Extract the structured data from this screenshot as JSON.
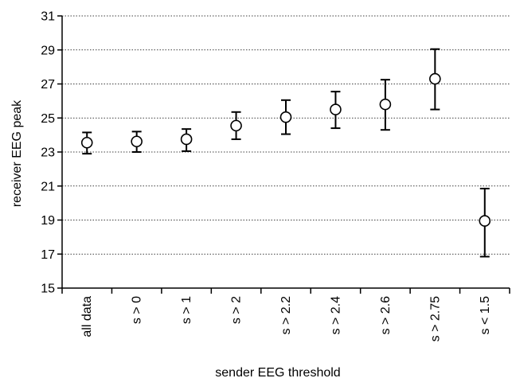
{
  "chart_data": {
    "type": "scatter",
    "title": "",
    "xlabel": "sender EEG threshold",
    "ylabel": "receiver EEG peak",
    "ylim": [
      15,
      31
    ],
    "yticks": [
      15,
      17,
      19,
      21,
      23,
      25,
      27,
      29,
      31
    ],
    "grid": "horizontal-dotted",
    "categories": [
      "all data",
      "s > 0",
      "s > 1",
      "s > 2",
      "s > 2.2",
      "s > 2.4",
      "s > 2.6",
      "s > 2.75",
      "s < 1.5"
    ],
    "values": [
      23.55,
      23.62,
      23.75,
      24.55,
      25.05,
      25.5,
      25.8,
      27.3,
      18.95
    ],
    "error_low": [
      22.9,
      23.0,
      23.05,
      23.75,
      24.05,
      24.4,
      24.3,
      25.5,
      16.85
    ],
    "error_high": [
      24.15,
      24.2,
      24.35,
      25.35,
      26.05,
      26.55,
      27.25,
      29.05,
      20.85
    ],
    "colors": {
      "marker_fill": "#ffffff",
      "marker_stroke": "#000000",
      "axis": "#000000",
      "grid": "#000000"
    }
  }
}
